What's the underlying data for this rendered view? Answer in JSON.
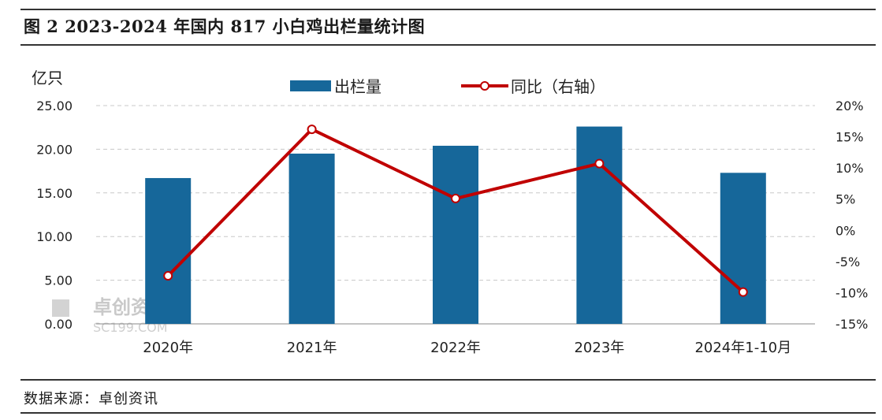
{
  "title": "图 2 2023-2024 年国内 817 小白鸡出栏量统计图",
  "source": "数据来源：卓创资讯",
  "watermark": {
    "text": "卓创资讯",
    "sub": "SC199.COM"
  },
  "colors": {
    "bar": "#16679a",
    "line": "#c00000",
    "grid": "#c8c8c8",
    "axis": "#888888"
  },
  "chart_data": {
    "type": "bar",
    "categories": [
      "2020年",
      "2021年",
      "2022年",
      "2023年",
      "2024年1-10月"
    ],
    "y_unit": "亿只",
    "ylim": [
      0,
      25
    ],
    "y_ticks": [
      "0.00",
      "5.00",
      "10.00",
      "15.00",
      "20.00",
      "25.00"
    ],
    "y2lim": [
      -15,
      20
    ],
    "y2_ticks": [
      "-15%",
      "-10%",
      "-5%",
      "0%",
      "5%",
      "10%",
      "15%",
      "20%"
    ],
    "grid": true,
    "legend_position": "top-center",
    "series": [
      {
        "name": "出栏量",
        "type": "bar",
        "axis": "left",
        "values": [
          16.7,
          19.5,
          20.4,
          22.6,
          17.3
        ]
      },
      {
        "name": "同比（右轴）",
        "type": "line",
        "axis": "right",
        "values": [
          -7.3,
          16.2,
          5.1,
          10.7,
          -9.9
        ]
      }
    ]
  }
}
